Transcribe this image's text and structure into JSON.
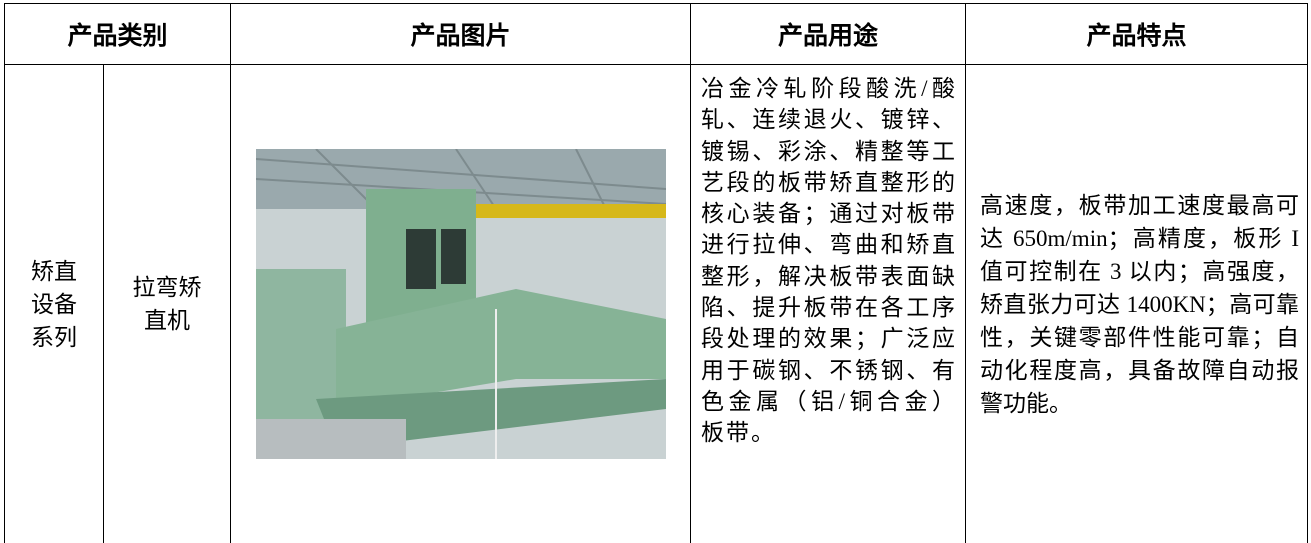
{
  "table": {
    "header": [
      "产品类别",
      "产品图片",
      "产品用途",
      "产品特点"
    ],
    "rows": [
      [
        "矫直设备系列",
        "拉弯矫直机",
        "冶金冷轧阶段酸洗/酸轧、连续退火、镀锌、镀锡、彩涂、精整等工艺段的板带矫直整形的核心装备；通过对板带进行拉伸、弯曲和矫直整形，解决板带表面缺陷、提升板带在各工序段处理的效果；广泛应用于碳钢、不锈钢、有色金属（铝/铜合金）板带。",
        "高速度，板带加工速度最高可达 650m/min；高精度，板形 I 值可控制在 3 以内；高强度，矫直张力可达 1400KN；高可靠性，关键零部件性能可靠；自动化程度高，具备故障自动报警功能。"
      ]
    ]
  }
}
